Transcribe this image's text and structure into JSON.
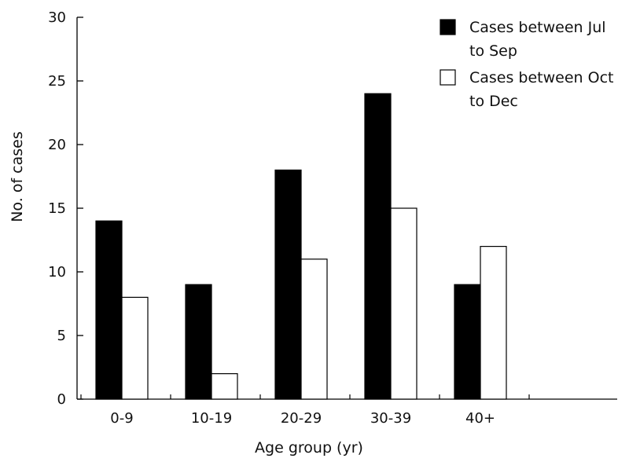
{
  "chart_data": {
    "type": "bar",
    "xlabel": "Age group (yr)",
    "ylabel": "No. of cases",
    "ylim": [
      0,
      30
    ],
    "yticks": [
      0,
      5,
      10,
      15,
      20,
      25,
      30
    ],
    "categories": [
      "0-9",
      "10-19",
      "20-29",
      "30-39",
      "40+"
    ],
    "series": [
      {
        "name": "Cases between Jul to Sep",
        "legend_lines": [
          "Cases between Jul",
          "to Sep"
        ],
        "color": "#000000",
        "values": [
          14,
          9,
          18,
          24,
          9
        ]
      },
      {
        "name": "Cases between Oct to Dec",
        "legend_lines": [
          "Cases between Oct",
          "to Dec"
        ],
        "color": "#ffffff",
        "values": [
          8,
          2,
          11,
          15,
          12
        ]
      }
    ],
    "grid": false,
    "legend_position": "top-right"
  }
}
